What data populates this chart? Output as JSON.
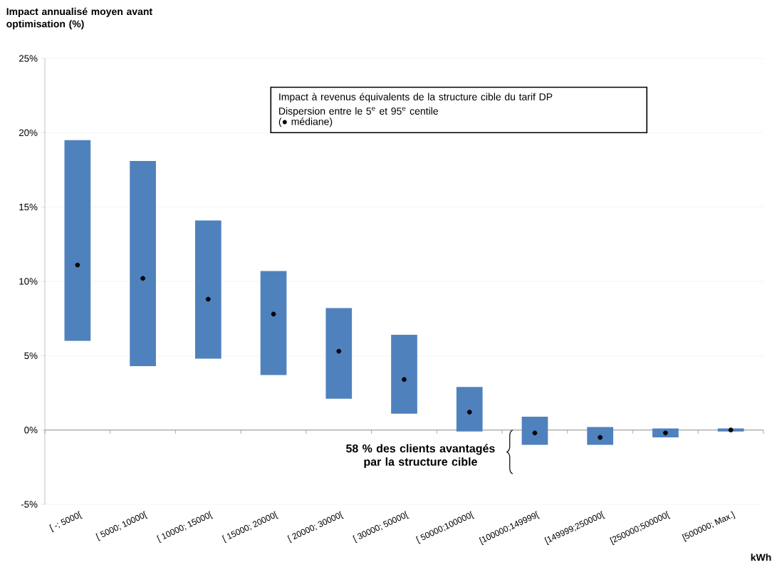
{
  "chart_data": {
    "type": "bar",
    "ylabel": "Impact annualisé moyen avant optimisation (%)",
    "xlabel": "kWh",
    "categories": [
      "[ -; 5000[",
      "[ 5000; 10000[",
      "[ 10000; 15000[",
      "[ 15000; 20000[",
      "[ 20000; 30000[",
      "[ 30000; 50000[",
      "[ 50000;100000[",
      "[100000;149999[",
      "[149999;250000[",
      "[250000;500000[",
      "[500000; Max.]"
    ],
    "series": [
      {
        "type": "bar",
        "color": "#4f81bd",
        "base": [
          6.0,
          4.3,
          4.8,
          3.7,
          2.1,
          1.1,
          -0.1,
          -1.0,
          -1.0,
          -0.5,
          -0.1
        ],
        "values": [
          13.5,
          13.8,
          9.3,
          7.0,
          6.1,
          5.3,
          3.0,
          1.9,
          1.2,
          0.6,
          0.2
        ]
      },
      {
        "type": "scatter",
        "color": "#000000",
        "marker": "circle",
        "x": [
          "[ -; 5000[",
          "[ 5000; 10000[",
          "[ 10000; 15000[",
          "[ 15000; 20000[",
          "[ 20000; 30000[",
          "[ 30000; 50000[",
          "[ 50000;100000[",
          "[100000;149999[",
          "[149999;250000[",
          "[250000;500000[",
          "[500000; Max.]"
        ],
        "values": [
          11.1,
          10.2,
          8.8,
          7.8,
          5.3,
          3.4,
          1.2,
          -0.2,
          -0.5,
          -0.2,
          0.0
        ]
      }
    ],
    "ylim": [
      -5,
      25
    ],
    "yticks": [
      {
        "value": -5,
        "label": "-5%"
      },
      {
        "value": 0,
        "label": "0%"
      },
      {
        "value": 5,
        "label": "5%"
      },
      {
        "value": 10,
        "label": "10%"
      },
      {
        "value": 15,
        "label": "15%"
      },
      {
        "value": 20,
        "label": "20%"
      },
      {
        "value": 25,
        "label": "25%"
      }
    ],
    "grid": "y",
    "annotations": [
      "Impact à revenus équivalents de la structure cible du tarif DP",
      "Dispersion entre le 5$^{e}$ et 95$^{e}$ centile",
      "(● médiane)",
      "58 % des clients avantagés par la structure cible"
    ]
  }
}
